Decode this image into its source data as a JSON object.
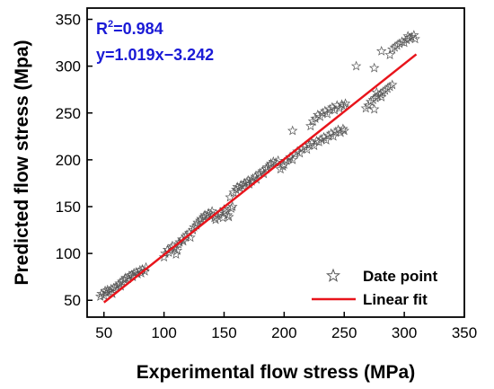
{
  "chart_data": {
    "type": "scatter",
    "xlabel": "Experimental flow stress (MPa)",
    "ylabel": "Predicted flow stress (Mpa)",
    "xlim": [
      36,
      350
    ],
    "ylim": [
      32,
      362
    ],
    "xticks": [
      50,
      100,
      150,
      200,
      250,
      300,
      350
    ],
    "yticks": [
      50,
      100,
      150,
      200,
      250,
      300,
      350
    ],
    "annotation": {
      "r2_prefix": "R",
      "r2_sup": "2",
      "r2_value": "=0.984",
      "equation": "y=1.019x−3.242"
    },
    "legend": {
      "position": "bottom-right",
      "points_label": "Date point",
      "fit_label": "Linear fit"
    },
    "fit": {
      "slope": 1.019,
      "intercept": -3.242,
      "x_range": [
        50,
        310
      ],
      "color": "#e8141b"
    },
    "series": [
      {
        "marker": "star",
        "color": "#555555",
        "points": [
          [
            47,
            54
          ],
          [
            48,
            57
          ],
          [
            50,
            55
          ],
          [
            51,
            60
          ],
          [
            52,
            58
          ],
          [
            53,
            61
          ],
          [
            55,
            59
          ],
          [
            56,
            62
          ],
          [
            57,
            57
          ],
          [
            58,
            63
          ],
          [
            60,
            64
          ],
          [
            62,
            66
          ],
          [
            63,
            68
          ],
          [
            64,
            65
          ],
          [
            65,
            70
          ],
          [
            67,
            72
          ],
          [
            68,
            74
          ],
          [
            70,
            73
          ],
          [
            71,
            76
          ],
          [
            73,
            77
          ],
          [
            74,
            75
          ],
          [
            75,
            79
          ],
          [
            77,
            80
          ],
          [
            78,
            78
          ],
          [
            80,
            82
          ],
          [
            81,
            79
          ],
          [
            82,
            83
          ],
          [
            84,
            81
          ],
          [
            85,
            85
          ],
          [
            100,
            96
          ],
          [
            101,
            100
          ],
          [
            103,
            104
          ],
          [
            104,
            101
          ],
          [
            106,
            106
          ],
          [
            107,
            108
          ],
          [
            109,
            105
          ],
          [
            110,
            99
          ],
          [
            111,
            103
          ],
          [
            112,
            110
          ],
          [
            113,
            112
          ],
          [
            115,
            115
          ],
          [
            116,
            113
          ],
          [
            118,
            118
          ],
          [
            119,
            120
          ],
          [
            121,
            122
          ],
          [
            122,
            117
          ],
          [
            124,
            125
          ],
          [
            125,
            128
          ],
          [
            127,
            130
          ],
          [
            128,
            133
          ],
          [
            130,
            135
          ],
          [
            131,
            137
          ],
          [
            133,
            139
          ],
          [
            134,
            141
          ],
          [
            136,
            140
          ],
          [
            137,
            143
          ],
          [
            139,
            142
          ],
          [
            140,
            145
          ],
          [
            142,
            138
          ],
          [
            143,
            136
          ],
          [
            144,
            140
          ],
          [
            146,
            142
          ],
          [
            147,
            144
          ],
          [
            149,
            138
          ],
          [
            150,
            147
          ],
          [
            151,
            145
          ],
          [
            153,
            141
          ],
          [
            154,
            139
          ],
          [
            156,
            148
          ],
          [
            157,
            150
          ],
          [
            155,
            160
          ],
          [
            158,
            165
          ],
          [
            160,
            168
          ],
          [
            161,
            171
          ],
          [
            163,
            170
          ],
          [
            164,
            173
          ],
          [
            166,
            172
          ],
          [
            167,
            175
          ],
          [
            169,
            176
          ],
          [
            170,
            178
          ],
          [
            171,
            174
          ],
          [
            173,
            177
          ],
          [
            174,
            180
          ],
          [
            176,
            182
          ],
          [
            177,
            179
          ],
          [
            179,
            184
          ],
          [
            180,
            186
          ],
          [
            182,
            188
          ],
          [
            183,
            185
          ],
          [
            185,
            190
          ],
          [
            186,
            192
          ],
          [
            188,
            194
          ],
          [
            189,
            196
          ],
          [
            191,
            198
          ],
          [
            193,
            197
          ],
          [
            195,
            199
          ],
          [
            197,
            190
          ],
          [
            199,
            193
          ],
          [
            200,
            195
          ],
          [
            202,
            199
          ],
          [
            204,
            201
          ],
          [
            205,
            203
          ],
          [
            207,
            200
          ],
          [
            209,
            206
          ],
          [
            211,
            209
          ],
          [
            213,
            207
          ],
          [
            215,
            212
          ],
          [
            217,
            214
          ],
          [
            219,
            211
          ],
          [
            221,
            216
          ],
          [
            223,
            218
          ],
          [
            225,
            215
          ],
          [
            227,
            220
          ],
          [
            229,
            219
          ],
          [
            231,
            222
          ],
          [
            233,
            224
          ],
          [
            235,
            221
          ],
          [
            237,
            226
          ],
          [
            239,
            228
          ],
          [
            241,
            225
          ],
          [
            243,
            230
          ],
          [
            245,
            232
          ],
          [
            247,
            229
          ],
          [
            249,
            233
          ],
          [
            250,
            231
          ],
          [
            222,
            236
          ],
          [
            224,
            241
          ],
          [
            226,
            244
          ],
          [
            228,
            248
          ],
          [
            230,
            246
          ],
          [
            232,
            250
          ],
          [
            234,
            252
          ],
          [
            236,
            249
          ],
          [
            238,
            254
          ],
          [
            240,
            256
          ],
          [
            242,
            253
          ],
          [
            244,
            258
          ],
          [
            246,
            255
          ],
          [
            248,
            259
          ],
          [
            250,
            257
          ],
          [
            251,
            260
          ],
          [
            207,
            231
          ],
          [
            268,
            255
          ],
          [
            270,
            258
          ],
          [
            272,
            262
          ],
          [
            274,
            264
          ],
          [
            276,
            266
          ],
          [
            278,
            268
          ],
          [
            280,
            270
          ],
          [
            282,
            272
          ],
          [
            284,
            274
          ],
          [
            286,
            276
          ],
          [
            288,
            278
          ],
          [
            290,
            280
          ],
          [
            275,
            254
          ],
          [
            277,
            272
          ],
          [
            281,
            267
          ],
          [
            260,
            300
          ],
          [
            275,
            298
          ],
          [
            281,
            316
          ],
          [
            288,
            312
          ],
          [
            290,
            318
          ],
          [
            292,
            320
          ],
          [
            294,
            322
          ],
          [
            296,
            324
          ],
          [
            298,
            326
          ],
          [
            300,
            325
          ],
          [
            302,
            328
          ],
          [
            304,
            330
          ],
          [
            306,
            331
          ],
          [
            308,
            333
          ],
          [
            309,
            329
          ],
          [
            303,
            332
          ]
        ]
      }
    ]
  }
}
